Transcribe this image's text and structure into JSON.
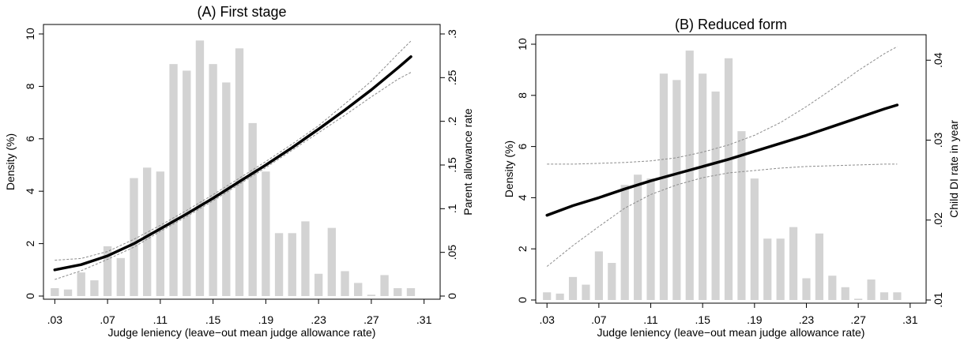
{
  "chart_data": [
    {
      "type": "bar",
      "panel": "A",
      "title": "(A) First stage",
      "xlabel": "Judge leniency (leave−out mean judge allowance rate)",
      "ylabel": "Density (%)",
      "ylabel_right": "Parent allowance rate",
      "xlim": [
        0.025,
        0.315
      ],
      "ylim": [
        0,
        10
      ],
      "ylim_right": [
        0,
        0.3
      ],
      "xticks": [
        0.03,
        0.07,
        0.11,
        0.15,
        0.19,
        0.23,
        0.27,
        0.31
      ],
      "xtick_labels": [
        ".03",
        ".07",
        ".11",
        ".15",
        ".19",
        ".23",
        ".27",
        ".31"
      ],
      "yticks": [
        0,
        2,
        4,
        6,
        8,
        10
      ],
      "ytick_labels": [
        "0",
        "2",
        "4",
        "6",
        "8",
        "10"
      ],
      "yticks_right": [
        0,
        0.05,
        0.1,
        0.15,
        0.2,
        0.25,
        0.3
      ],
      "ytick_labels_right": [
        "0",
        ".05",
        ".1",
        ".15",
        ".2",
        ".25",
        ".3"
      ],
      "bar_color": "#d3d3d3",
      "bars_x": [
        0.03,
        0.04,
        0.05,
        0.06,
        0.07,
        0.08,
        0.09,
        0.1,
        0.11,
        0.12,
        0.13,
        0.14,
        0.15,
        0.16,
        0.17,
        0.18,
        0.19,
        0.2,
        0.21,
        0.22,
        0.23,
        0.24,
        0.25,
        0.26,
        0.27,
        0.28,
        0.29,
        0.3
      ],
      "bars_density": [
        0.3,
        0.25,
        0.9,
        0.6,
        1.9,
        1.45,
        4.5,
        4.9,
        4.75,
        8.85,
        8.6,
        9.75,
        8.85,
        8.15,
        9.45,
        6.6,
        4.75,
        2.4,
        2.4,
        2.85,
        0.85,
        2.6,
        0.95,
        0.5,
        0.05,
        0.8,
        0.3,
        0.3
      ],
      "fit": {
        "axis": "right",
        "color": "#000000",
        "x": [
          0.03,
          0.05,
          0.07,
          0.09,
          0.11,
          0.13,
          0.15,
          0.17,
          0.19,
          0.21,
          0.23,
          0.25,
          0.27,
          0.29,
          0.3
        ],
        "y": [
          0.03,
          0.036,
          0.046,
          0.06,
          0.077,
          0.094,
          0.112,
          0.131,
          0.15,
          0.17,
          0.191,
          0.213,
          0.236,
          0.261,
          0.274
        ],
        "ci_lower": [
          0.019,
          0.029,
          0.042,
          0.056,
          0.074,
          0.091,
          0.109,
          0.128,
          0.147,
          0.167,
          0.187,
          0.207,
          0.228,
          0.248,
          0.256
        ],
        "ci_upper": [
          0.041,
          0.043,
          0.051,
          0.065,
          0.081,
          0.098,
          0.116,
          0.135,
          0.154,
          0.174,
          0.195,
          0.22,
          0.246,
          0.277,
          0.292
        ]
      }
    },
    {
      "type": "bar",
      "panel": "B",
      "title": "(B) Reduced form",
      "xlabel": "Judge leniency (leave−out mean judge allowance rate)",
      "ylabel": "Density (%)",
      "ylabel_right": "Child DI rate in year",
      "xlim": [
        0.025,
        0.315
      ],
      "ylim": [
        0,
        10
      ],
      "ylim_right": [
        0.01,
        0.042
      ],
      "xticks": [
        0.03,
        0.07,
        0.11,
        0.15,
        0.19,
        0.23,
        0.27,
        0.31
      ],
      "xtick_labels": [
        ".03",
        ".07",
        ".11",
        ".15",
        ".19",
        ".23",
        ".27",
        ".31"
      ],
      "yticks": [
        0,
        2,
        4,
        6,
        8,
        10
      ],
      "ytick_labels": [
        "0",
        "2",
        "4",
        "6",
        "8",
        "10"
      ],
      "yticks_right": [
        0.01,
        0.02,
        0.03,
        0.04
      ],
      "ytick_labels_right": [
        ".01",
        ".02",
        ".03",
        ".04"
      ],
      "bar_color": "#d3d3d3",
      "bars_x": [
        0.03,
        0.04,
        0.05,
        0.06,
        0.07,
        0.08,
        0.09,
        0.1,
        0.11,
        0.12,
        0.13,
        0.14,
        0.15,
        0.16,
        0.17,
        0.18,
        0.19,
        0.2,
        0.21,
        0.22,
        0.23,
        0.24,
        0.25,
        0.26,
        0.27,
        0.28,
        0.29,
        0.3
      ],
      "bars_density": [
        0.3,
        0.25,
        0.9,
        0.6,
        1.9,
        1.45,
        4.5,
        4.9,
        4.75,
        8.85,
        8.6,
        9.75,
        8.85,
        8.15,
        9.45,
        6.6,
        4.75,
        2.4,
        2.4,
        2.85,
        0.85,
        2.6,
        0.95,
        0.5,
        0.05,
        0.8,
        0.3,
        0.3
      ],
      "fit": {
        "axis": "right",
        "color": "#000000",
        "x": [
          0.03,
          0.05,
          0.07,
          0.09,
          0.11,
          0.13,
          0.15,
          0.17,
          0.19,
          0.21,
          0.23,
          0.25,
          0.27,
          0.29,
          0.3
        ],
        "y": [
          0.0206,
          0.0218,
          0.0228,
          0.0239,
          0.0249,
          0.0258,
          0.0267,
          0.0276,
          0.0286,
          0.0296,
          0.0306,
          0.0317,
          0.0328,
          0.0339,
          0.0344
        ],
        "ci_lower": [
          0.0142,
          0.0168,
          0.0192,
          0.0215,
          0.0232,
          0.0244,
          0.0253,
          0.0259,
          0.0262,
          0.0265,
          0.0267,
          0.0268,
          0.0269,
          0.027,
          0.027
        ],
        "ci_upper": [
          0.027,
          0.027,
          0.0271,
          0.0272,
          0.0274,
          0.0278,
          0.0285,
          0.0294,
          0.0306,
          0.0322,
          0.0342,
          0.0364,
          0.0387,
          0.0408,
          0.0417
        ]
      }
    }
  ]
}
